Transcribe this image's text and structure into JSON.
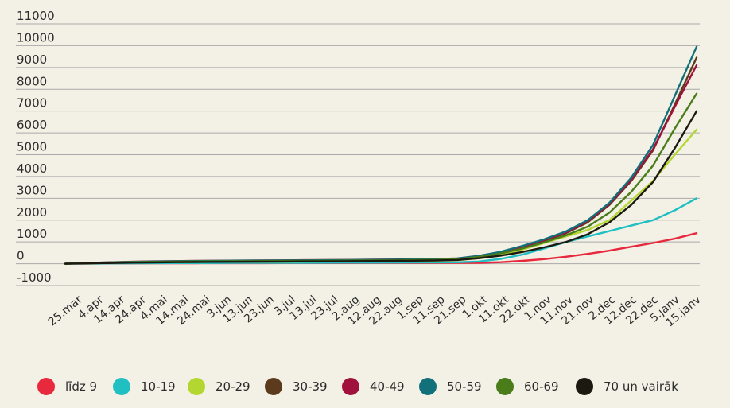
{
  "chart_data": {
    "type": "line",
    "title": "",
    "xlabel": "",
    "ylabel": "",
    "ylim": [
      -1000,
      11000
    ],
    "y_ticks": [
      -1000,
      0,
      1000,
      2000,
      3000,
      4000,
      5000,
      6000,
      7000,
      8000,
      9000,
      10000,
      11000
    ],
    "y_tick_labels": [
      "-1000",
      "0",
      "1000",
      "2000",
      "3000",
      "4000",
      "5000",
      "6000",
      "7000",
      "8000",
      "9000",
      "10000",
      "11000"
    ],
    "x_tick_labels": [
      "25.mar",
      "4.apr",
      "14.apr",
      "24.apr",
      "4.mai",
      "14.mai",
      "24.mai",
      "3.jun",
      "13.jun",
      "23.jun",
      "3.jul",
      "13.jul",
      "23.jul",
      "2.aug",
      "12.aug",
      "22.aug",
      "1.sep",
      "11.sep",
      "21.sep",
      "1.okt",
      "11.okt",
      "22.okt",
      "1.nov",
      "11.nov",
      "21.nov",
      "2.dec",
      "12.dec",
      "22.dec",
      "5.janv",
      "15.janv"
    ],
    "grid": true,
    "legend_position": "bottom",
    "series": [
      {
        "name": "līdz 9",
        "color": "#e8283c",
        "values": [
          0,
          5,
          10,
          15,
          18,
          20,
          22,
          24,
          25,
          26,
          27,
          28,
          29,
          30,
          31,
          32,
          33,
          34,
          36,
          40,
          70,
          130,
          210,
          320,
          450,
          600,
          780,
          950,
          1150,
          1400
        ]
      },
      {
        "name": "10-19",
        "color": "#1fbfc2",
        "values": [
          0,
          8,
          15,
          20,
          25,
          28,
          30,
          33,
          35,
          37,
          39,
          41,
          43,
          45,
          48,
          50,
          53,
          57,
          65,
          100,
          220,
          420,
          700,
          1000,
          1250,
          1500,
          1750,
          2000,
          2450,
          3000
        ]
      },
      {
        "name": "20-29",
        "color": "#b4d630",
        "values": [
          0,
          20,
          40,
          55,
          65,
          72,
          78,
          82,
          86,
          90,
          94,
          98,
          102,
          108,
          115,
          122,
          130,
          140,
          160,
          250,
          420,
          650,
          950,
          1250,
          1550,
          2000,
          2900,
          3800,
          5000,
          6150
        ]
      },
      {
        "name": "30-39",
        "color": "#5c3a1e",
        "values": [
          0,
          30,
          55,
          75,
          90,
          100,
          108,
          115,
          121,
          127,
          132,
          137,
          142,
          148,
          155,
          163,
          172,
          185,
          210,
          320,
          500,
          750,
          1050,
          1400,
          1900,
          2700,
          3800,
          5200,
          7300,
          9450
        ]
      },
      {
        "name": "40-49",
        "color": "#a0123c",
        "values": [
          0,
          35,
          65,
          90,
          108,
          120,
          130,
          138,
          145,
          151,
          157,
          163,
          169,
          176,
          184,
          193,
          203,
          217,
          245,
          360,
          530,
          780,
          1080,
          1430,
          1950,
          2750,
          3850,
          5250,
          7200,
          9100
        ]
      },
      {
        "name": "50-59",
        "color": "#11707a",
        "values": [
          0,
          30,
          60,
          85,
          102,
          115,
          125,
          133,
          140,
          146,
          152,
          158,
          164,
          171,
          179,
          188,
          198,
          212,
          240,
          360,
          550,
          820,
          1120,
          1480,
          2000,
          2800,
          3950,
          5450,
          7700,
          9950
        ]
      },
      {
        "name": "60-69",
        "color": "#4a7c1a",
        "values": [
          0,
          25,
          50,
          70,
          85,
          95,
          103,
          110,
          116,
          122,
          127,
          132,
          137,
          143,
          150,
          158,
          167,
          180,
          205,
          310,
          470,
          700,
          980,
          1300,
          1700,
          2350,
          3300,
          4500,
          6200,
          7800
        ]
      },
      {
        "name": "70 un vairāk",
        "color": "#1c1a10",
        "values": [
          0,
          15,
          30,
          45,
          58,
          68,
          75,
          82,
          88,
          94,
          99,
          104,
          109,
          115,
          122,
          130,
          139,
          150,
          170,
          250,
          370,
          540,
          750,
          1000,
          1350,
          1900,
          2700,
          3750,
          5300,
          7000
        ]
      }
    ]
  }
}
